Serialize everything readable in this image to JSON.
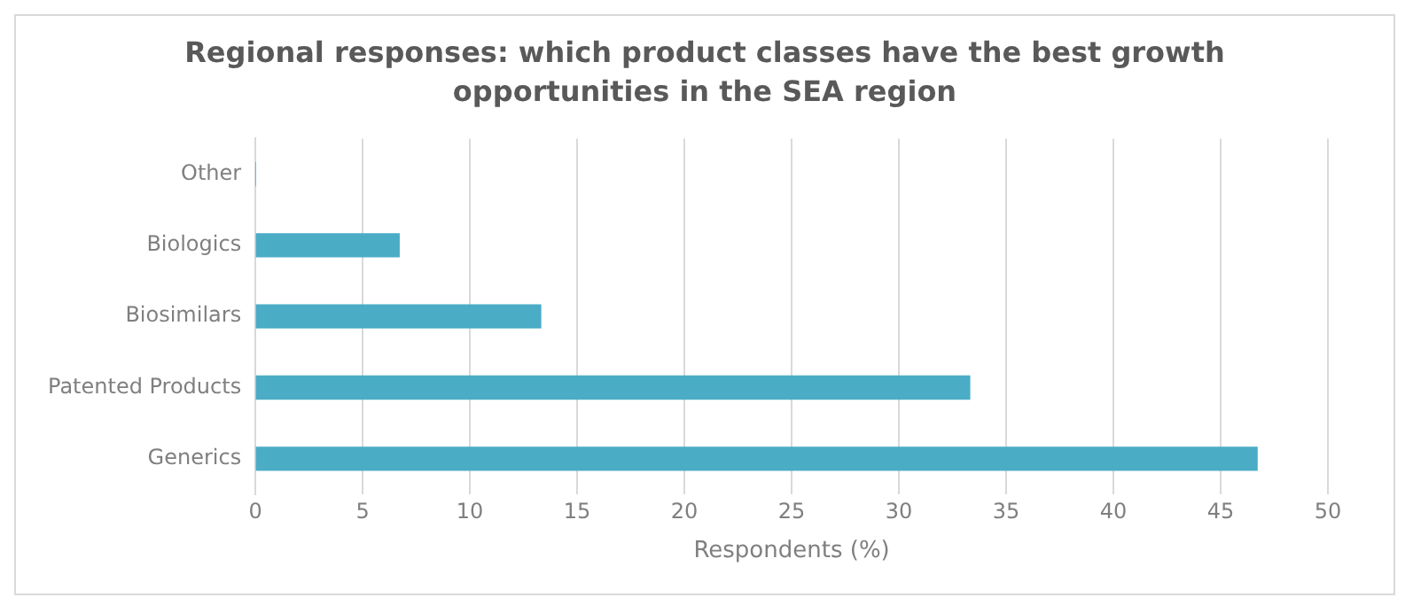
{
  "chart_data": {
    "type": "bar",
    "orientation": "horizontal",
    "title": "Regional responses: which product classes have the best growth opportunities in the SEA region",
    "xlabel": "Respondents (%)",
    "categories": [
      "Other",
      "Biologics",
      "Biosimilars",
      "Patented Products",
      "Generics"
    ],
    "values": [
      0,
      6.7,
      13.3,
      33.3,
      46.7
    ],
    "color": "#4bacc6",
    "xlim": [
      0,
      50
    ],
    "xticks": [
      0,
      5,
      10,
      15,
      20,
      25,
      30,
      35,
      40,
      45,
      50
    ],
    "grid": "x",
    "legend": false
  }
}
